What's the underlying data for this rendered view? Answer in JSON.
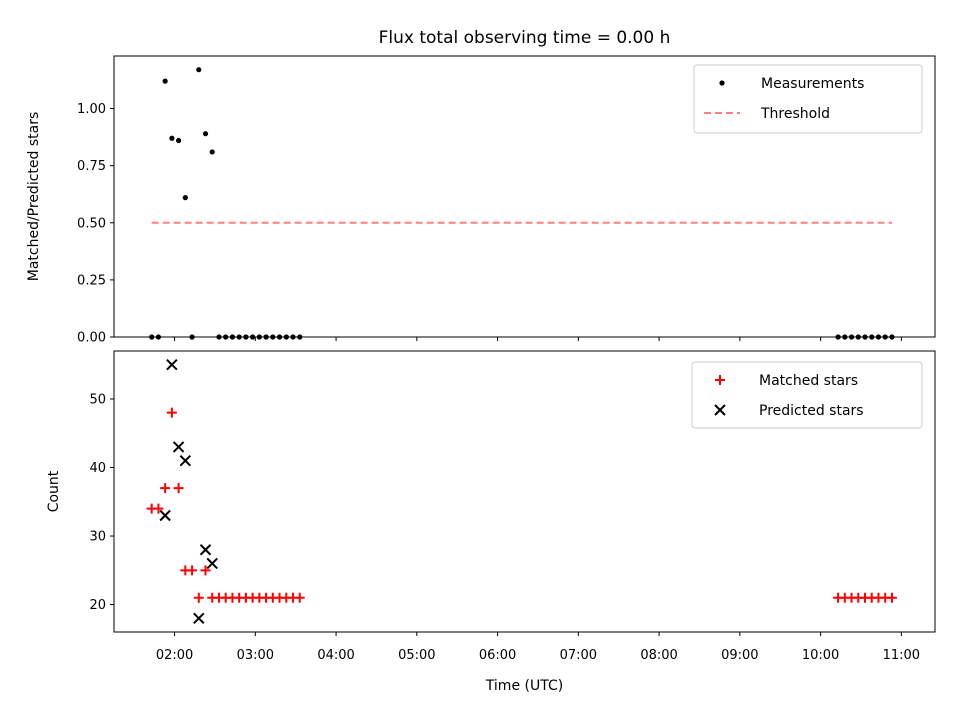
{
  "chart_data": [
    {
      "type": "scatter",
      "title": "Flux total observing time = 0.00 h",
      "xlabel": "",
      "ylabel": "Matched/Predicted stars",
      "ylim": [
        0,
        1.23
      ],
      "yticks": [
        "0.00",
        "0.25",
        "0.50",
        "0.75",
        "1.00"
      ],
      "ytick_values": [
        0,
        0.25,
        0.5,
        0.75,
        1.0
      ],
      "legend_position": "top-right",
      "series": [
        {
          "name": "Measurements",
          "marker": "dot",
          "color": "#000000",
          "points": [
            [
              "01:43",
              0
            ],
            [
              "01:48",
              0
            ],
            [
              "01:53",
              1.12
            ],
            [
              "01:58",
              0.87
            ],
            [
              "02:03",
              0.86
            ],
            [
              "02:08",
              0.61
            ],
            [
              "02:13",
              0
            ],
            [
              "02:18",
              1.17
            ],
            [
              "02:23",
              0.89
            ],
            [
              "02:28",
              0.81
            ],
            [
              "02:33",
              0
            ],
            [
              "02:38",
              0
            ],
            [
              "02:43",
              0
            ],
            [
              "02:48",
              0
            ],
            [
              "02:53",
              0
            ],
            [
              "02:58",
              0
            ],
            [
              "03:03",
              0
            ],
            [
              "03:08",
              0
            ],
            [
              "03:13",
              0
            ],
            [
              "03:18",
              0
            ],
            [
              "03:23",
              0
            ],
            [
              "03:28",
              0
            ],
            [
              "03:33",
              0
            ],
            [
              "10:13",
              0
            ],
            [
              "10:18",
              0
            ],
            [
              "10:23",
              0
            ],
            [
              "10:28",
              0
            ],
            [
              "10:33",
              0
            ],
            [
              "10:38",
              0
            ],
            [
              "10:43",
              0
            ],
            [
              "10:48",
              0
            ],
            [
              "10:53",
              0
            ]
          ]
        },
        {
          "name": "Threshold",
          "marker": "dashed-line",
          "color": "#ff7f7f",
          "points": [
            [
              "01:43",
              0.5
            ],
            [
              "10:53",
              0.5
            ]
          ]
        }
      ]
    },
    {
      "type": "scatter",
      "title": "",
      "xlabel": "Time (UTC)",
      "ylabel": "Count",
      "ylim": [
        16,
        57
      ],
      "yticks": [
        "20",
        "30",
        "40",
        "50"
      ],
      "ytick_values": [
        20,
        30,
        40,
        50
      ],
      "xlim": [
        "01:15",
        "11:25"
      ],
      "xticks": [
        "02:00",
        "03:00",
        "04:00",
        "05:00",
        "06:00",
        "07:00",
        "08:00",
        "09:00",
        "10:00",
        "11:00"
      ],
      "legend_position": "top-right",
      "series": [
        {
          "name": "Matched stars",
          "marker": "plus",
          "color": "#ff0000",
          "points": [
            [
              "01:43",
              34
            ],
            [
              "01:48",
              34
            ],
            [
              "01:53",
              37
            ],
            [
              "01:58",
              48
            ],
            [
              "02:03",
              37
            ],
            [
              "02:08",
              25
            ],
            [
              "02:13",
              25
            ],
            [
              "02:18",
              21
            ],
            [
              "02:23",
              25
            ],
            [
              "02:28",
              21
            ],
            [
              "02:33",
              21
            ],
            [
              "02:38",
              21
            ],
            [
              "02:43",
              21
            ],
            [
              "02:48",
              21
            ],
            [
              "02:53",
              21
            ],
            [
              "02:58",
              21
            ],
            [
              "03:03",
              21
            ],
            [
              "03:08",
              21
            ],
            [
              "03:13",
              21
            ],
            [
              "03:18",
              21
            ],
            [
              "03:23",
              21
            ],
            [
              "03:28",
              21
            ],
            [
              "03:33",
              21
            ],
            [
              "10:13",
              21
            ],
            [
              "10:18",
              21
            ],
            [
              "10:23",
              21
            ],
            [
              "10:28",
              21
            ],
            [
              "10:33",
              21
            ],
            [
              "10:38",
              21
            ],
            [
              "10:43",
              21
            ],
            [
              "10:48",
              21
            ],
            [
              "10:53",
              21
            ]
          ]
        },
        {
          "name": "Predicted stars",
          "marker": "x",
          "color": "#000000",
          "points": [
            [
              "01:53",
              33
            ],
            [
              "01:58",
              55
            ],
            [
              "02:03",
              43
            ],
            [
              "02:08",
              41
            ],
            [
              "02:18",
              18
            ],
            [
              "02:23",
              28
            ],
            [
              "02:28",
              26
            ]
          ]
        }
      ]
    }
  ]
}
